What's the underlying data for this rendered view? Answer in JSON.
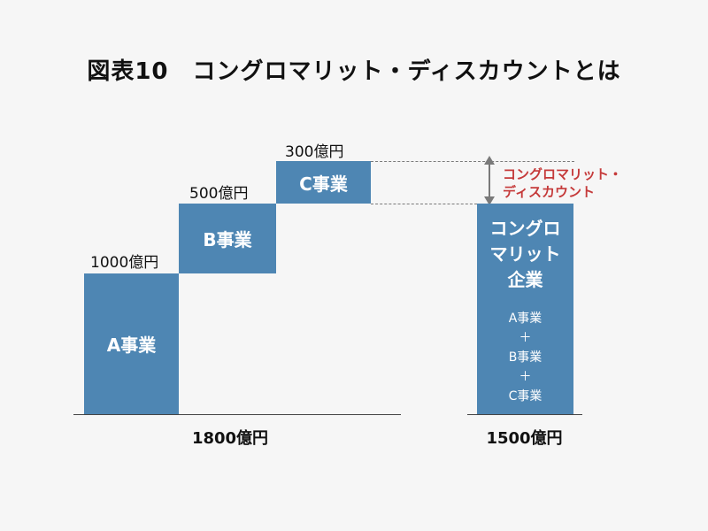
{
  "title": "図表10　コングロマリット・ディスカウントとは",
  "segments": [
    {
      "name": "A事業",
      "value_label": "1000億円",
      "value": 1000
    },
    {
      "name": "B事業",
      "value_label": "500億円",
      "value": 500
    },
    {
      "name": "C事業",
      "value_label": "300億円",
      "value": 300
    }
  ],
  "sum_total_label": "1800億円",
  "sum_total_value": 1800,
  "conglomerate": {
    "name_line1": "コングロ",
    "name_line2": "マリット",
    "name_line3": "企業",
    "parts": [
      "A事業",
      "＋",
      "B事業",
      "＋",
      "C事業"
    ],
    "total_label": "1500億円",
    "total_value": 1500
  },
  "discount": {
    "line1": "コングロマリット・",
    "line2": "ディスカウント",
    "color": "#c53a3a"
  },
  "colors": {
    "bar": "#4e86b3",
    "background": "#f6f6f6"
  }
}
